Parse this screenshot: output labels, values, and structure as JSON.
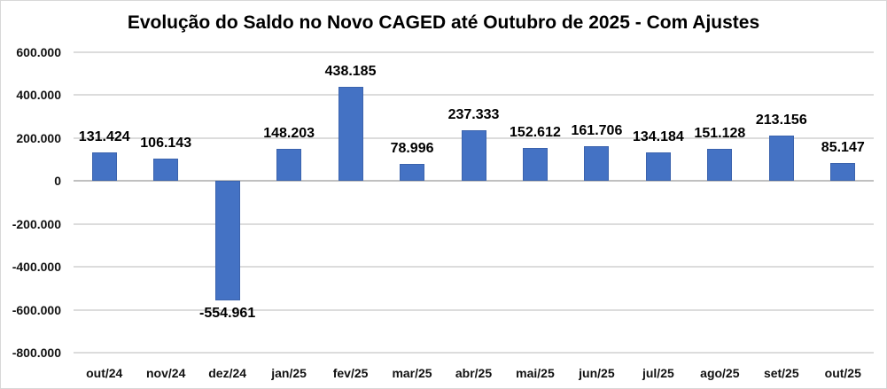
{
  "chart_data": {
    "type": "bar",
    "title": "Evolução do Saldo no Novo CAGED até Outubro de 2025 - Com Ajustes",
    "categories": [
      "out/24",
      "nov/24",
      "dez/24",
      "jan/25",
      "fev/25",
      "mar/25",
      "abr/25",
      "mai/25",
      "jun/25",
      "jul/25",
      "ago/25",
      "set/25",
      "out/25"
    ],
    "values": [
      131424,
      106143,
      -554961,
      148203,
      438185,
      78996,
      237333,
      152612,
      161706,
      134184,
      151128,
      213156,
      85147
    ],
    "value_labels": [
      "131.424",
      "106.143",
      "-554.961",
      "148.203",
      "438.185",
      "78.996",
      "237.333",
      "152.612",
      "161.706",
      "134.184",
      "151.128",
      "213.156",
      "85.147"
    ],
    "xlabel": "",
    "ylabel": "",
    "ylim": [
      -800000,
      600000
    ],
    "ytick_interval": 200000,
    "yticks": [
      {
        "value": 600000,
        "label": "600.000"
      },
      {
        "value": 400000,
        "label": "400.000"
      },
      {
        "value": 200000,
        "label": "200.000"
      },
      {
        "value": 0,
        "label": "0"
      },
      {
        "value": -200000,
        "label": "-200.000"
      },
      {
        "value": -400000,
        "label": "-400.000"
      },
      {
        "value": -600000,
        "label": "-600.000"
      },
      {
        "value": -800000,
        "label": "-800.000"
      }
    ],
    "grid": true,
    "legend": false,
    "label_position": "outside_end",
    "colors": {
      "bar_fill": "#4472C4",
      "bar_edge": "#3B63AD",
      "gridline": "#DCDCDC",
      "axis_line": "#C0C0C0",
      "text": "#000000",
      "background": "#FFFFFF",
      "frame_border": "#D7D7D7"
    }
  }
}
